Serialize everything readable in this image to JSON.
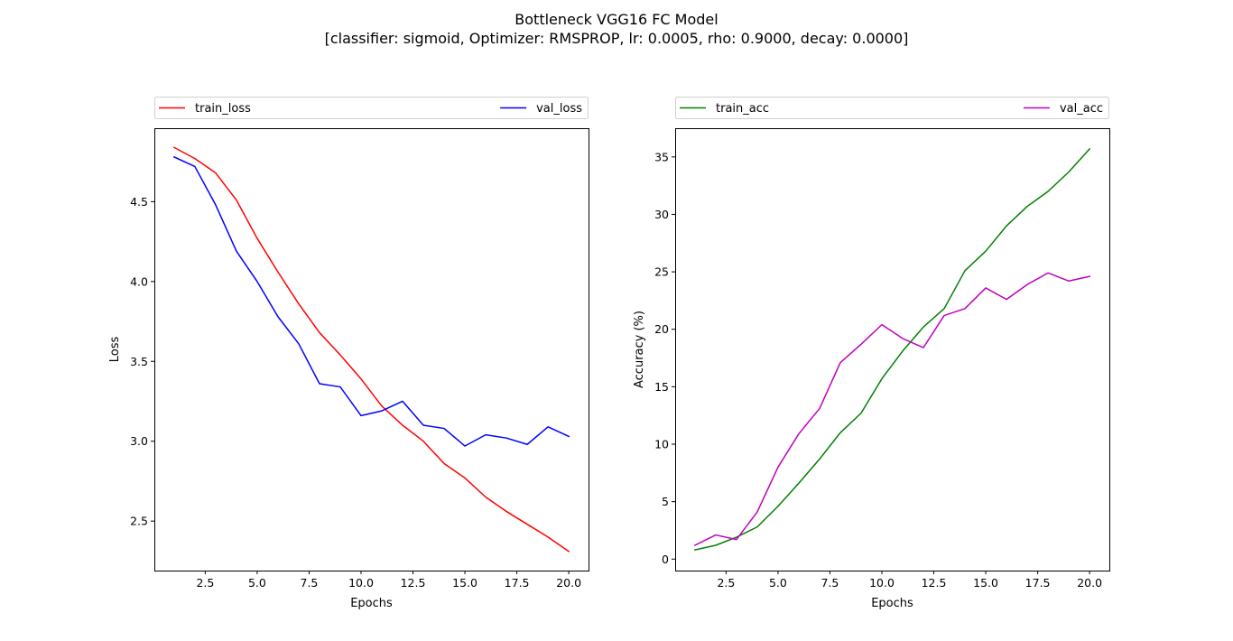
{
  "figure": {
    "title": "Bottleneck VGG16 FC Model",
    "subtitle": "[classifier: sigmoid, Optimizer: RMSPROP, lr: 0.0005, rho: 0.9000, decay: 0.0000]"
  },
  "chart_data": [
    {
      "type": "line",
      "xlabel": "Epochs",
      "ylabel": "Loss",
      "xlim": [
        0.05,
        20.95
      ],
      "ylim": [
        2.19,
        4.96
      ],
      "xticks": [
        2.5,
        5.0,
        7.5,
        10.0,
        12.5,
        15.0,
        17.5,
        20.0
      ],
      "xtick_labels": [
        "2.5",
        "5.0",
        "7.5",
        "10.0",
        "12.5",
        "15.0",
        "17.5",
        "20.0"
      ],
      "yticks": [
        2.5,
        3.0,
        3.5,
        4.0,
        4.5
      ],
      "ytick_labels": [
        "2.5",
        "3.0",
        "3.5",
        "4.0",
        "4.5"
      ],
      "grid": false,
      "legend": "top, above plot",
      "x": [
        1,
        2,
        3,
        4,
        5,
        6,
        7,
        8,
        9,
        10,
        11,
        12,
        13,
        14,
        15,
        16,
        17,
        18,
        19,
        20
      ],
      "series": [
        {
          "name": "train_loss",
          "color": "#ff0000",
          "values": [
            4.84,
            4.77,
            4.68,
            4.51,
            4.27,
            4.06,
            3.86,
            3.68,
            3.54,
            3.39,
            3.22,
            3.1,
            3.0,
            2.86,
            2.77,
            2.65,
            2.56,
            2.48,
            2.4,
            2.31
          ]
        },
        {
          "name": "val_loss",
          "color": "#0000ff",
          "values": [
            4.78,
            4.72,
            4.48,
            4.19,
            4.0,
            3.78,
            3.61,
            3.36,
            3.34,
            3.16,
            3.19,
            3.25,
            3.1,
            3.08,
            2.97,
            3.04,
            3.02,
            2.98,
            3.09,
            3.03
          ]
        }
      ]
    },
    {
      "type": "line",
      "xlabel": "Epochs",
      "ylabel": "Accuracy (%)",
      "xlim": [
        0.05,
        20.95
      ],
      "ylim": [
        -1.0,
        37.5
      ],
      "xticks": [
        2.5,
        5.0,
        7.5,
        10.0,
        12.5,
        15.0,
        17.5,
        20.0
      ],
      "xtick_labels": [
        "2.5",
        "5.0",
        "7.5",
        "10.0",
        "12.5",
        "15.0",
        "17.5",
        "20.0"
      ],
      "yticks": [
        0,
        5,
        10,
        15,
        20,
        25,
        30,
        35
      ],
      "ytick_labels": [
        "0",
        "5",
        "10",
        "15",
        "20",
        "25",
        "30",
        "35"
      ],
      "grid": false,
      "legend": "top, above plot",
      "x": [
        1,
        2,
        3,
        4,
        5,
        6,
        7,
        8,
        9,
        10,
        11,
        12,
        13,
        14,
        15,
        16,
        17,
        18,
        19,
        20
      ],
      "series": [
        {
          "name": "train_acc",
          "color": "#008000",
          "values": [
            0.8,
            1.2,
            1.9,
            2.8,
            4.6,
            6.6,
            8.7,
            11.0,
            12.7,
            15.7,
            18.1,
            20.2,
            21.8,
            25.1,
            26.8,
            29.0,
            30.7,
            32.0,
            33.7,
            35.7
          ]
        },
        {
          "name": "val_acc",
          "color": "#bf00bf",
          "values": [
            1.2,
            2.1,
            1.7,
            4.1,
            8.0,
            10.9,
            13.1,
            17.1,
            18.7,
            20.4,
            19.2,
            18.4,
            21.2,
            21.8,
            23.6,
            22.6,
            23.9,
            24.9,
            24.2,
            24.6
          ]
        }
      ]
    }
  ]
}
